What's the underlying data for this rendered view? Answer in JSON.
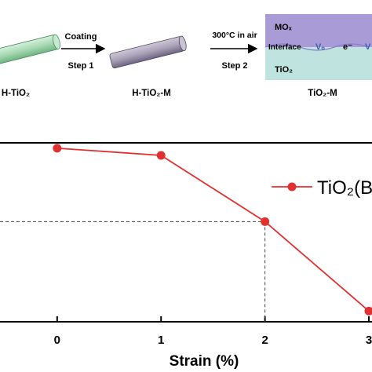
{
  "schematic": {
    "stage_labels": [
      "H-TiO₂",
      "H-TiO₂-M",
      "TiO₂-M"
    ],
    "arrow1_top": "Coating",
    "arrow1_bottom": "Step 1",
    "arrow2_top": "300°C in air",
    "arrow2_bottom": "Step 2",
    "layer_top": "MOₓ",
    "interface": "Interface",
    "vacancy": "Vₒ",
    "electron": "e⁻",
    "vacancy_right": "V",
    "layer_bottom": "TiO₂",
    "colors": {
      "rod_green": "#a8d9b4",
      "rod_purple": "#a9a1b6",
      "mo_layer": "#a99bd6",
      "tio2_layer": "#bfe3df",
      "label_blue": "#3a5fb0"
    }
  },
  "chart_data": {
    "type": "line",
    "x": [
      0,
      1,
      2,
      3
    ],
    "tick_labels": [
      "0",
      "1",
      "2",
      "3"
    ],
    "xlabel": "Strain (%)",
    "xlim": [
      -0.55,
      3.03
    ],
    "series": [
      {
        "name": "TiO₂(B",
        "values": [
          97,
          93,
          56,
          6
        ],
        "color": "#e03030"
      }
    ],
    "ylim": [
      0,
      100
    ],
    "guide_point_index": 2,
    "grid": false,
    "legend": "top-right"
  }
}
